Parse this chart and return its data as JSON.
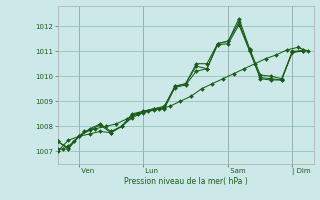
{
  "bg_color": "#cce8e8",
  "grid_color": "#88bbbb",
  "line_color": "#1a5c1a",
  "marker_color": "#1a5c1a",
  "xlabel": "Pression niveau de la mer( hPa )",
  "ylim": [
    1006.5,
    1012.8
  ],
  "yticks": [
    1007,
    1008,
    1009,
    1010,
    1011,
    1012
  ],
  "day_labels": [
    " Ven",
    " Lun",
    " Sam",
    "| Dim"
  ],
  "day_positions": [
    24,
    96,
    192,
    264
  ],
  "vline_positions": [
    24,
    96,
    192,
    264
  ],
  "xlim": [
    0,
    288
  ],
  "line1_x": [
    0,
    6,
    12,
    18,
    24,
    30,
    42,
    54,
    66,
    78,
    90,
    102,
    114,
    126,
    138,
    150,
    162,
    174,
    186,
    198,
    210,
    222,
    234,
    246,
    258,
    270,
    282
  ],
  "line1_y": [
    1007.1,
    1007.1,
    1007.2,
    1007.4,
    1007.6,
    1007.8,
    1007.9,
    1008.0,
    1008.1,
    1008.3,
    1008.5,
    1008.6,
    1008.7,
    1008.8,
    1009.0,
    1009.2,
    1009.5,
    1009.7,
    1009.9,
    1010.1,
    1010.3,
    1010.5,
    1010.7,
    1010.85,
    1011.05,
    1011.15,
    1011.0
  ],
  "line2_x": [
    0,
    12,
    24,
    36,
    48,
    60,
    72,
    84,
    96,
    108,
    120,
    132,
    144,
    156,
    168,
    180,
    192,
    204,
    216,
    228,
    240,
    252,
    264,
    276
  ],
  "line2_y": [
    1007.4,
    1007.1,
    1007.6,
    1007.9,
    1008.1,
    1007.8,
    1008.0,
    1008.5,
    1008.6,
    1008.7,
    1008.75,
    1009.6,
    1009.7,
    1010.5,
    1010.5,
    1011.3,
    1011.4,
    1012.3,
    1011.1,
    1010.05,
    1010.0,
    1009.9,
    1010.95,
    1011.0
  ],
  "line3_x": [
    0,
    12,
    24,
    36,
    48,
    60,
    72,
    84,
    96,
    108,
    120,
    132,
    144,
    156,
    168,
    180,
    192,
    204,
    216,
    228,
    240,
    252,
    264,
    276
  ],
  "line3_y": [
    1007.4,
    1007.15,
    1007.6,
    1007.85,
    1008.05,
    1007.75,
    1008.0,
    1008.45,
    1008.6,
    1008.7,
    1008.8,
    1009.6,
    1009.7,
    1010.4,
    1010.3,
    1011.3,
    1011.4,
    1012.15,
    1011.05,
    1009.9,
    1009.85,
    1009.85,
    1010.95,
    1011.05
  ],
  "line4_x": [
    0,
    12,
    24,
    36,
    48,
    60,
    72,
    84,
    96,
    108,
    120,
    132,
    144,
    156,
    168,
    180,
    192,
    204,
    216,
    228,
    240,
    252,
    264,
    276
  ],
  "line4_y": [
    1007.0,
    1007.45,
    1007.6,
    1007.7,
    1007.8,
    1007.75,
    1008.0,
    1008.35,
    1008.55,
    1008.65,
    1008.7,
    1009.55,
    1009.65,
    1010.2,
    1010.3,
    1011.25,
    1011.3,
    1012.05,
    1011.0,
    1009.95,
    1009.9,
    1009.85,
    1011.0,
    1011.0
  ]
}
